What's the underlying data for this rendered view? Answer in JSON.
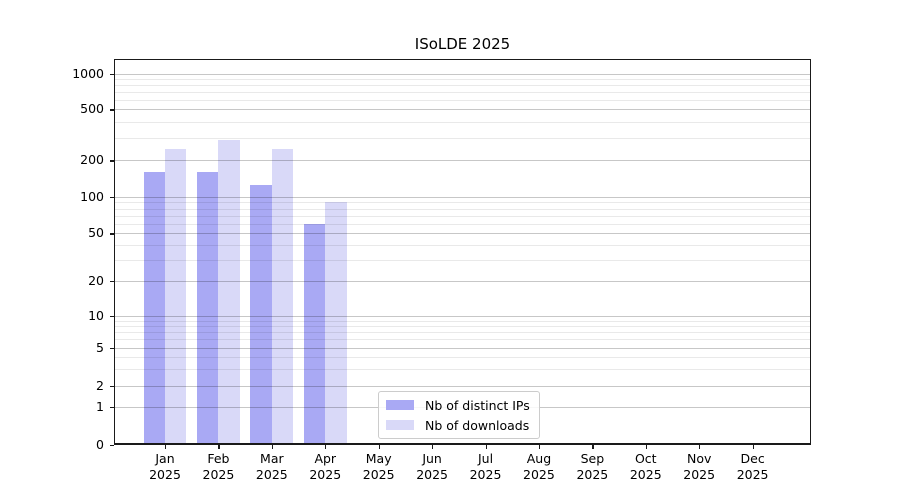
{
  "figure_title": "ISoLDE 2025",
  "chart_data": {
    "type": "bar",
    "title": "ISoLDE 2025",
    "y_scale": "symlog",
    "grid": true,
    "legend_position": "lower center",
    "categories": [
      "Jan 2025",
      "Feb 2025",
      "Mar 2025",
      "Apr 2025",
      "May 2025",
      "Jun 2025",
      "Jul 2025",
      "Aug 2025",
      "Sep 2025",
      "Oct 2025",
      "Nov 2025",
      "Dec 2025"
    ],
    "month_labels": [
      "Jan",
      "Feb",
      "Mar",
      "Apr",
      "May",
      "Jun",
      "Jul",
      "Aug",
      "Sep",
      "Oct",
      "Nov",
      "Dec"
    ],
    "year_label": "2025",
    "series": [
      {
        "name": "Nb of distinct IPs",
        "color": "#a9a9f4",
        "values": [
          160,
          160,
          125,
          60,
          null,
          null,
          null,
          null,
          null,
          null,
          null,
          null
        ]
      },
      {
        "name": "Nb of downloads",
        "color": "#d9d9f8",
        "values": [
          245,
          290,
          245,
          90,
          null,
          null,
          null,
          null,
          null,
          null,
          null,
          null
        ]
      }
    ],
    "y_ticks": [
      0,
      1,
      2,
      5,
      10,
      20,
      50,
      100,
      200,
      500,
      1000
    ],
    "y_minor_gridlines": [
      3,
      4,
      6,
      7,
      8,
      9,
      30,
      40,
      60,
      70,
      80,
      90,
      300,
      400,
      600,
      700,
      800,
      900
    ],
    "ylim": [
      0,
      1300
    ],
    "xlabel": "",
    "ylabel": ""
  },
  "colors": {
    "grid_major": "#c7c7c7",
    "grid_minor": "#e8e8e8",
    "axis": "#1a1a1a",
    "background": "#ffffff",
    "legend_border": "#cccccc"
  }
}
